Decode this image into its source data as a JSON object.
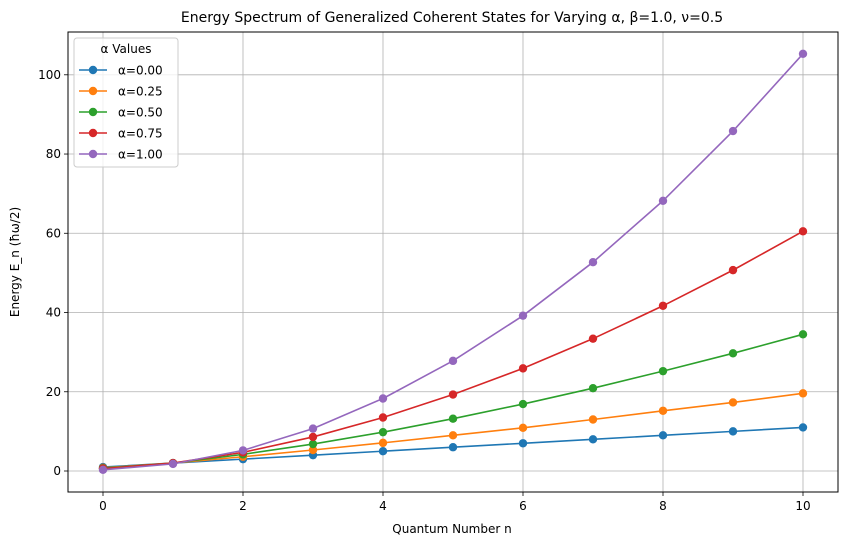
{
  "chart_data": {
    "type": "line",
    "title": "Energy Spectrum of Generalized Coherent States for Varying α,  β=1.0, ν=0.5",
    "xlabel": "Quantum Number n",
    "ylabel": "Energy E_n (ħω/2)",
    "xlim": [
      -0.5,
      10.5
    ],
    "ylim": [
      -5.3,
      110.8
    ],
    "xticks": [
      0,
      2,
      4,
      6,
      8,
      10
    ],
    "yticks": [
      0,
      20,
      40,
      60,
      80,
      100
    ],
    "grid": true,
    "legend": {
      "title": "α Values",
      "position": "top-left"
    },
    "x": [
      0,
      1,
      2,
      3,
      4,
      5,
      6,
      7,
      8,
      9,
      10
    ],
    "series": [
      {
        "name": "α=0.00",
        "color": "#1f77b4",
        "values": [
          1.0,
          2.0,
          3.0,
          4.0,
          5.0,
          6.0,
          7.0,
          8.0,
          9.0,
          10.0,
          11.0
        ]
      },
      {
        "name": "α=0.25",
        "color": "#ff7f0e",
        "values": [
          0.8,
          2.0,
          3.6,
          5.3,
          7.1,
          9.0,
          10.9,
          13.0,
          15.2,
          17.3,
          19.6
        ]
      },
      {
        "name": "α=0.50",
        "color": "#2ca02c",
        "values": [
          0.7,
          2.0,
          4.2,
          6.8,
          9.8,
          13.2,
          16.9,
          20.9,
          25.2,
          29.7,
          34.5
        ]
      },
      {
        "name": "α=0.75",
        "color": "#d62728",
        "values": [
          0.6,
          2.0,
          4.7,
          8.6,
          13.5,
          19.3,
          25.9,
          33.4,
          41.7,
          50.7,
          60.5
        ]
      },
      {
        "name": "α=1.00",
        "color": "#9467bd",
        "values": [
          0.3,
          1.8,
          5.2,
          10.7,
          18.3,
          27.8,
          39.2,
          52.7,
          68.2,
          85.8,
          105.3
        ]
      }
    ]
  }
}
